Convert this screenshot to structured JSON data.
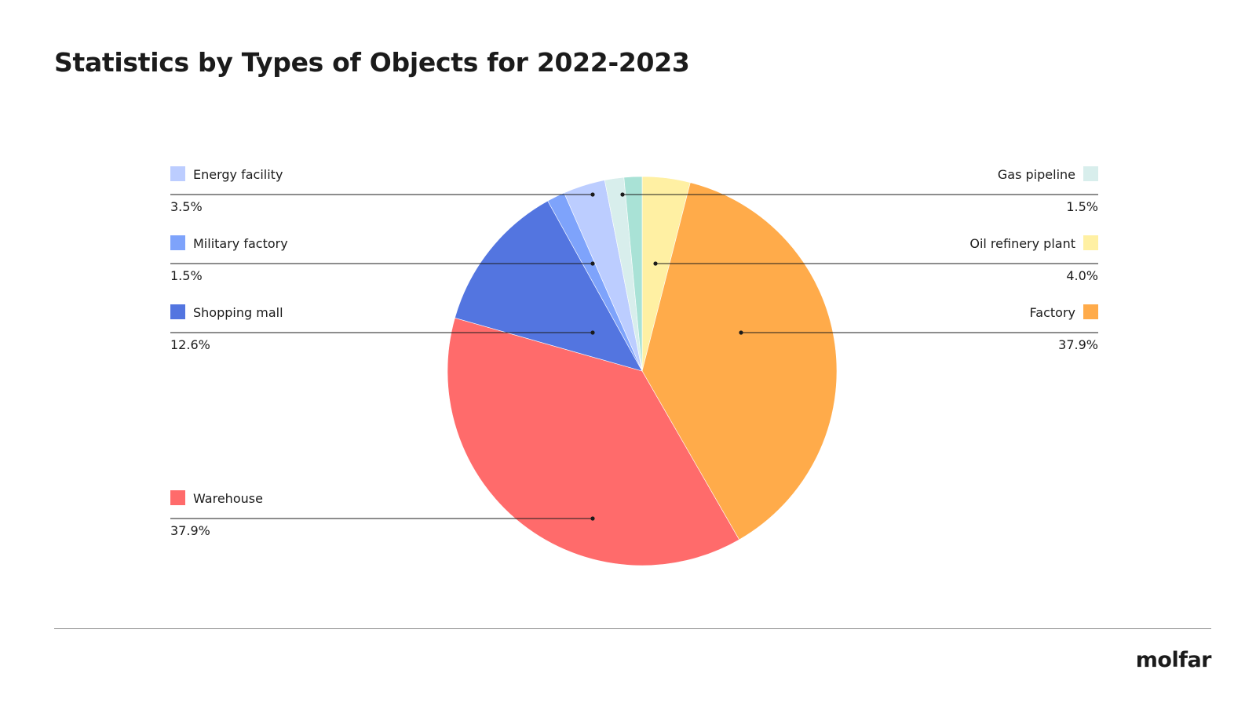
{
  "page": {
    "title": "Statistics by Types of Objects for 2022-2023",
    "brand": "molfar"
  },
  "chart_data": {
    "type": "pie",
    "title": "Statistics by Types of Objects for 2022-2023",
    "start_angle_deg": 0,
    "direction": "clockwise",
    "slices": [
      {
        "label": "Oil refinery plant",
        "value": 4.0,
        "display": "4.0%",
        "color": "#FFF0A3",
        "legend_side": "right",
        "legend_row": 1
      },
      {
        "label": "Factory",
        "value": 37.9,
        "display": "37.9%",
        "color": "#FFAB4A",
        "legend_side": "right",
        "legend_row": 2
      },
      {
        "label": "Warehouse",
        "value": 37.9,
        "display": "37.9%",
        "color": "#FF6B6B",
        "legend_side": "left",
        "legend_row": 3
      },
      {
        "label": "Shopping mall",
        "value": 12.6,
        "display": "12.6%",
        "color": "#5375E0",
        "legend_side": "left",
        "legend_row": 2
      },
      {
        "label": "Military factory",
        "value": 1.5,
        "display": "1.5%",
        "color": "#7EA3FB",
        "legend_side": "left",
        "legend_row": 1
      },
      {
        "label": "Energy facility",
        "value": 3.5,
        "display": "3.5%",
        "color": "#BCCDFF",
        "legend_side": "left",
        "legend_row": 0
      },
      {
        "label": "",
        "value": 1.6,
        "display": "",
        "color": "#D8EEEC",
        "legend_side": "none",
        "legend_row": -1
      },
      {
        "label": "Gas pipeline",
        "value": 1.5,
        "display": "1.5%",
        "color": "#A9E2D6",
        "legend_side": "right",
        "legend_row": 0
      }
    ],
    "legend_swatch_colors": {
      "Gas pipeline": "#D8EEEC"
    }
  }
}
